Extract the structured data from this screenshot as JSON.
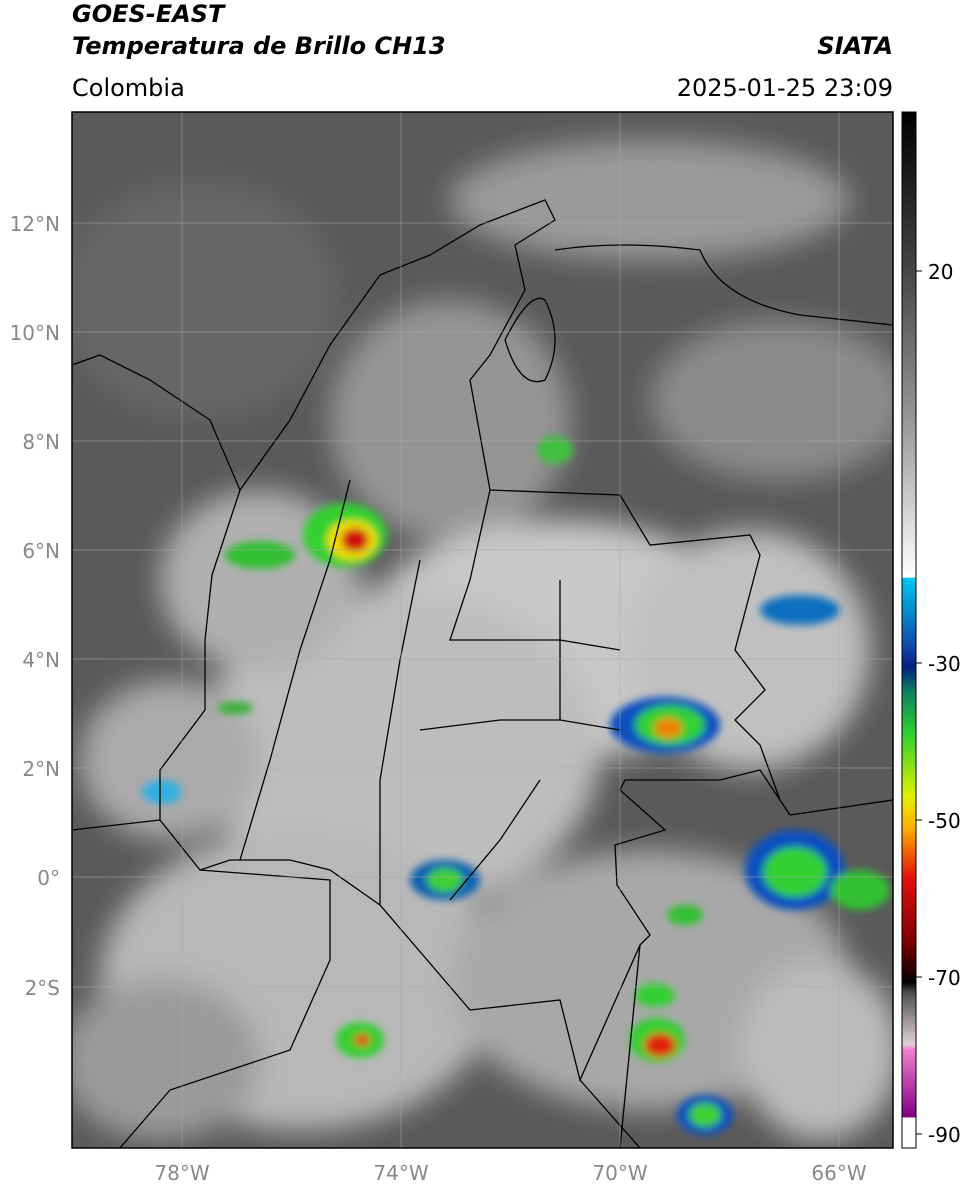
{
  "header": {
    "satellite": "GOES-EAST",
    "product": "Temperatura de Brillo CH13",
    "source": "SIATA",
    "region": "Colombia",
    "datetime": "2025-01-25 23:09"
  },
  "map": {
    "lat_ticks": [
      "12°N",
      "10°N",
      "8°N",
      "6°N",
      "4°N",
      "2°N",
      "0°",
      "2°S"
    ],
    "lon_ticks": [
      "78°W",
      "74°W",
      "70°W",
      "66°W"
    ]
  },
  "colorbar": {
    "ticks": [
      "20",
      "-30",
      "-50",
      "-70",
      "-90"
    ]
  }
}
